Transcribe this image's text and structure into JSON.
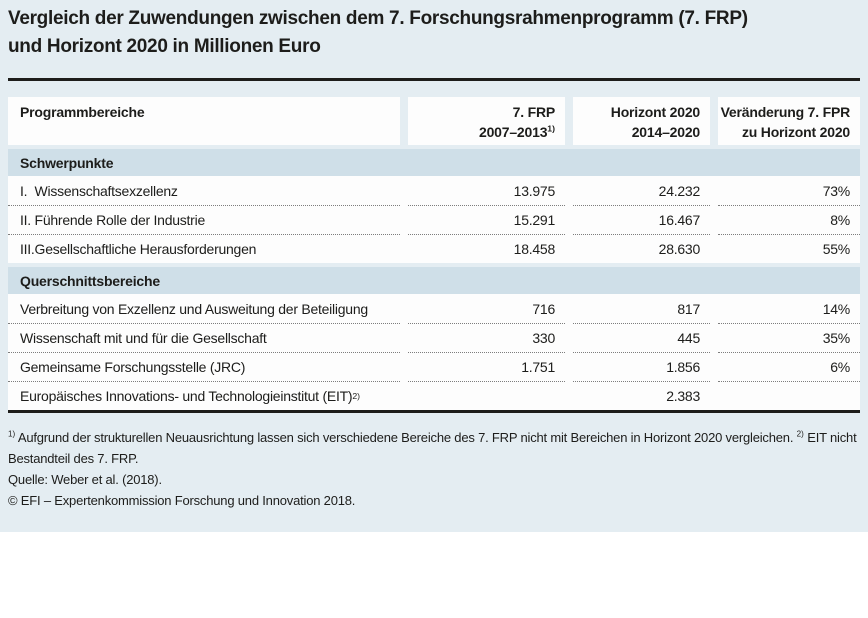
{
  "colors": {
    "page_bg": "#e4edf2",
    "band_bg": "#cfdfe8",
    "cell_bg": "#fdfdfd",
    "ink": "#1d1d1b",
    "dot": "#7d7d7d"
  },
  "title": "Vergleich der Zuwendungen zwischen dem 7. Forschungsrahmenprogramm (7. FRP)\nund Horizont 2020 in Millionen Euro",
  "table": {
    "header": {
      "col1": "Programmbereiche",
      "col2": {
        "line1": "7. FRP",
        "line2": "2007–2013",
        "sup": "1)"
      },
      "col3": {
        "line1": "Horizont 2020",
        "line2": "2014–2020"
      },
      "col4": {
        "line1": "Veränderung 7. FPR",
        "line2": "zu Horizont 2020"
      }
    },
    "sections": [
      {
        "heading": "Schwerpunkte",
        "rows": [
          {
            "label": "I.  Wissenschaftsexzellenz",
            "frp": "13.975",
            "h2020": "24.232",
            "change": "73%"
          },
          {
            "label": "II. Führende Rolle der Industrie",
            "frp": "15.291",
            "h2020": "16.467",
            "change": "8%"
          },
          {
            "label": "III.Gesellschaftliche Herausforderungen",
            "frp": "18.458",
            "h2020": "28.630",
            "change": "55%"
          }
        ]
      },
      {
        "heading": "Querschnittsbereiche",
        "rows": [
          {
            "label": "Verbreitung von Exzellenz und Ausweitung der Beteiligung",
            "frp": "716",
            "h2020": "817",
            "change": "14%"
          },
          {
            "label": "Wissenschaft mit und für die Gesellschaft",
            "frp": "330",
            "h2020": "445",
            "change": "35%"
          },
          {
            "label": "Gemeinsame Forschungsstelle (JRC)",
            "frp": "1.751",
            "h2020": "1.856",
            "change": "6%"
          },
          {
            "label": "Europäisches Innovations- und Technologieinstitut (EIT)",
            "label_sup": "2)",
            "frp": "",
            "h2020": "2.383",
            "change": ""
          }
        ]
      }
    ]
  },
  "footnotes": {
    "fn1_marker": "1)",
    "fn1_text": " Aufgrund der strukturellen Neuausrichtung lassen sich verschiedene Bereiche des 7. FRP nicht mit Bereichen in Horizont 2020 vergleichen. ",
    "fn2_marker": "2)",
    "fn2_text": " EIT nicht Bestandteil des 7. FRP.",
    "source": "Quelle: Weber et al. (2018).",
    "copyright": "© EFI – Expertenkommission Forschung und Innovation 2018."
  }
}
